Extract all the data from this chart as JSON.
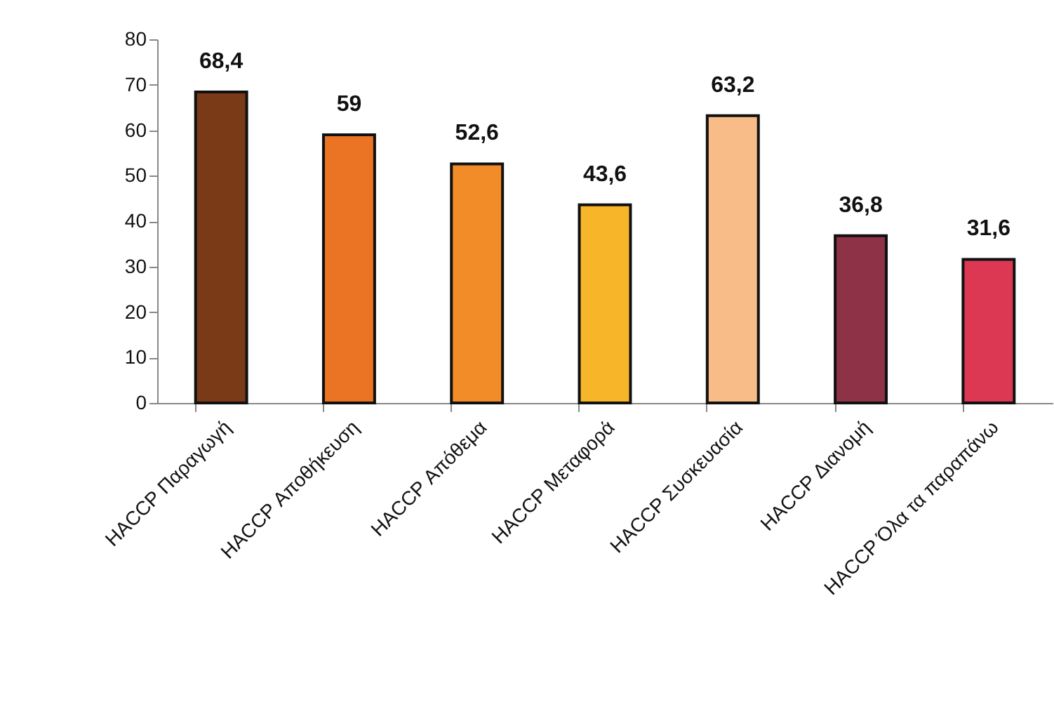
{
  "chart_data": {
    "type": "bar",
    "categories": [
      "HACCP Παραγωγή",
      "HACCP Αποθήκευση",
      "HACCP Απόθεμα",
      "HACCP Μεταφορά",
      "HACCP Συσκευασία",
      "HACCP Διανομή",
      "HACCP Όλα τα παραπάνω"
    ],
    "values": [
      68.4,
      59,
      52.6,
      43.6,
      63.2,
      36.8,
      31.6
    ],
    "colors": [
      "#7b3a17",
      "#ea7424",
      "#f28c28",
      "#f7b52a",
      "#f8bc88",
      "#8e3248",
      "#dc3753"
    ],
    "value_labels": [
      "68,4",
      "59",
      "52,6",
      "43,6",
      "63,2",
      "36,8",
      "31,6"
    ],
    "ylim": [
      0,
      80
    ],
    "yticks": [
      0,
      10,
      20,
      30,
      40,
      50,
      60,
      70,
      80
    ],
    "grid": false
  }
}
